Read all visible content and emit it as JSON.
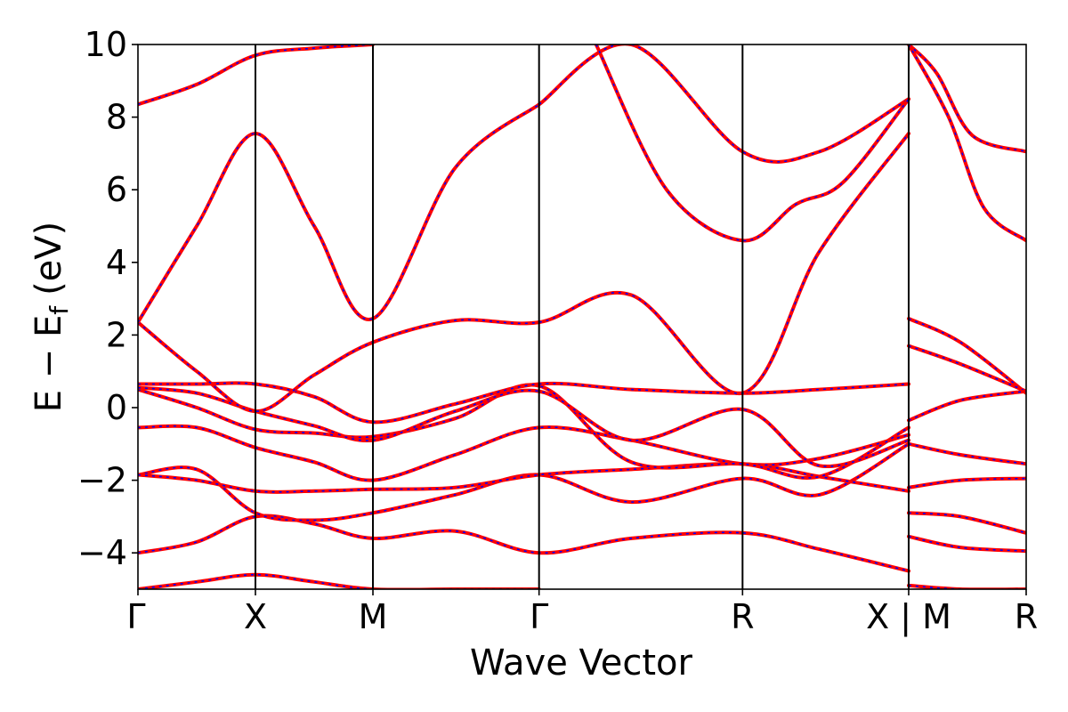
{
  "chart_data": {
    "type": "line",
    "title": "",
    "xlabel": "Wave Vector",
    "ylabel": "E − E_f (eV)",
    "ylabel_parts": {
      "main": "E − E",
      "sub": "f",
      "unit": "(eV)"
    },
    "ylim": [
      -5,
      10
    ],
    "yticks": [
      -4,
      -2,
      0,
      2,
      4,
      6,
      8,
      10
    ],
    "ytick_labels": [
      "−4",
      "−2",
      "0",
      "2",
      "4",
      "6",
      "8",
      "10"
    ],
    "kpath_ticks": [
      {
        "pos": 0.0,
        "label": "Γ"
      },
      {
        "pos": 1.0,
        "label": "X"
      },
      {
        "pos": 2.0,
        "label": "M"
      },
      {
        "pos": 3.414,
        "label": "Γ"
      },
      {
        "pos": 5.146,
        "label": "R"
      },
      {
        "pos": 6.56,
        "label": "X | M"
      },
      {
        "pos": 7.56,
        "label": "R"
      }
    ],
    "xlim": [
      0,
      7.56
    ],
    "grid": false,
    "legend": "none",
    "colors": {
      "band": "#ff0000",
      "band_overlay": "#0000ff",
      "axis": "#000000"
    },
    "series": [
      {
        "x": [
          0,
          0.5,
          1.0,
          1.5,
          2.0,
          2.7,
          3.414
        ],
        "y": [
          -5.0,
          -4.8,
          -4.6,
          -4.8,
          -5.0,
          -5.0,
          -5.0
        ]
      },
      {
        "x": [
          0,
          0.5,
          1.0,
          1.5,
          2.0,
          2.7,
          3.414,
          4.2,
          5.146,
          5.8,
          6.56
        ],
        "y": [
          -4.0,
          -3.7,
          -3.0,
          -3.2,
          -3.6,
          -3.4,
          -4.0,
          -3.6,
          -3.45,
          -3.9,
          -4.5
        ]
      },
      {
        "x": [
          0,
          0.5,
          1.0,
          1.5,
          2.0,
          2.7,
          3.414,
          4.2,
          5.146,
          5.8,
          6.56
        ],
        "y": [
          -1.85,
          -1.7,
          -2.9,
          -3.1,
          -2.9,
          -2.4,
          -1.85,
          -2.6,
          -1.95,
          -2.4,
          -1.0
        ]
      },
      {
        "x": [
          0,
          0.5,
          1.0,
          1.5,
          2.0,
          2.7,
          3.414,
          4.2,
          5.146,
          5.8,
          6.56
        ],
        "y": [
          -1.85,
          -2.0,
          -2.3,
          -2.3,
          -2.25,
          -2.2,
          -1.85,
          -1.7,
          -1.55,
          -1.9,
          -2.3
        ]
      },
      {
        "x": [
          0,
          0.5,
          1.0,
          1.5,
          2.0,
          2.7,
          3.414,
          4.2,
          5.146,
          5.8,
          6.56
        ],
        "y": [
          -0.55,
          -0.55,
          -1.1,
          -1.5,
          -2.0,
          -1.3,
          -0.55,
          -0.9,
          -1.55,
          -1.4,
          -0.75
        ]
      },
      {
        "x": [
          0,
          0.5,
          1.0,
          1.5,
          2.0,
          2.7,
          3.414,
          4.2,
          5.146,
          5.8,
          6.56
        ],
        "y": [
          0.5,
          0.0,
          -0.6,
          -0.7,
          -0.8,
          -0.3,
          0.6,
          -1.5,
          -1.55,
          -1.9,
          -0.55
        ]
      },
      {
        "x": [
          0,
          0.5,
          1.0,
          1.5,
          2.0,
          2.7,
          3.414,
          4.2,
          5.146,
          5.8,
          6.56
        ],
        "y": [
          0.65,
          0.65,
          0.65,
          0.3,
          -0.4,
          0.1,
          0.65,
          0.5,
          0.4,
          0.5,
          0.65
        ]
      },
      {
        "x": [
          0,
          0.5,
          1.0,
          1.5,
          2.0,
          2.7,
          3.414,
          4.2,
          5.146,
          5.8,
          6.56
        ],
        "y": [
          0.55,
          0.4,
          -0.1,
          -0.5,
          -0.9,
          -0.1,
          0.45,
          -0.9,
          -0.05,
          -1.6,
          -0.9
        ]
      },
      {
        "x": [
          0,
          0.5,
          1.0,
          1.5,
          2.0,
          2.7,
          3.414,
          4.2,
          5.146,
          5.8,
          6.56
        ],
        "y": [
          2.35,
          1.0,
          -0.1,
          0.9,
          1.8,
          2.4,
          2.35,
          3.1,
          0.4,
          4.3,
          7.55
        ]
      },
      {
        "x": [
          0,
          0.5,
          1.0,
          1.5,
          2.0,
          2.7,
          3.414
        ],
        "y": [
          2.35,
          5.0,
          7.55,
          5.0,
          2.45,
          6.6,
          8.35
        ]
      },
      {
        "x": [
          0,
          0.5,
          1.0,
          1.5,
          2.0
        ],
        "y": [
          8.35,
          8.9,
          9.7,
          9.9,
          10.0
        ]
      },
      {
        "x": [
          3.414,
          4.2,
          5.146,
          5.8,
          6.56
        ],
        "y": [
          8.35,
          10.0,
          7.05,
          7.05,
          8.5
        ]
      },
      {
        "x": [
          3.9,
          4.5,
          5.146,
          5.6,
          6.0,
          6.56
        ],
        "y": [
          10.0,
          6.0,
          4.6,
          5.6,
          6.2,
          8.5
        ]
      },
      {
        "x": [
          6.56,
          6.8,
          7.1,
          7.56
        ],
        "y": [
          10.0,
          9.2,
          7.5,
          7.05
        ]
      },
      {
        "x": [
          6.56,
          6.9,
          7.2,
          7.56
        ],
        "y": [
          10.0,
          8.0,
          5.5,
          4.6
        ]
      },
      {
        "x": [
          6.56,
          7.0,
          7.56
        ],
        "y": [
          2.45,
          1.8,
          0.4
        ]
      },
      {
        "x": [
          6.56,
          7.0,
          7.56
        ],
        "y": [
          1.7,
          1.2,
          0.45
        ]
      },
      {
        "x": [
          6.56,
          7.0,
          7.56
        ],
        "y": [
          -0.35,
          0.2,
          0.45
        ]
      },
      {
        "x": [
          6.56,
          7.0,
          7.56
        ],
        "y": [
          -1.0,
          -1.3,
          -1.55
        ]
      },
      {
        "x": [
          6.56,
          7.0,
          7.56
        ],
        "y": [
          -2.2,
          -2.0,
          -1.95
        ]
      },
      {
        "x": [
          6.56,
          7.0,
          7.56
        ],
        "y": [
          -2.9,
          -3.0,
          -3.45
        ]
      },
      {
        "x": [
          6.56,
          7.0,
          7.56
        ],
        "y": [
          -3.55,
          -3.85,
          -3.95
        ]
      },
      {
        "x": [
          6.56,
          7.0,
          7.56
        ],
        "y": [
          -4.9,
          -5.0,
          -5.0
        ]
      }
    ]
  }
}
